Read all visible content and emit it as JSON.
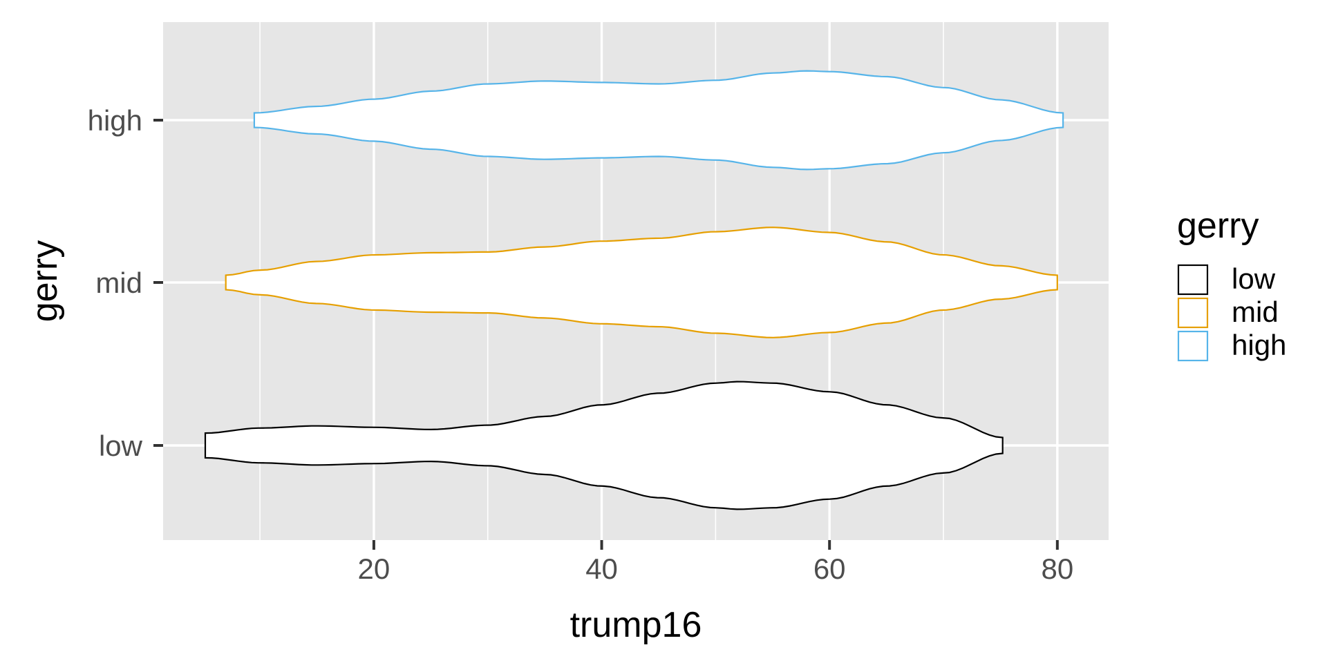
{
  "chart_data": {
    "type": "violin",
    "orientation": "horizontal",
    "xlabel": "trump16",
    "ylabel": "gerry",
    "xlim": [
      1.5,
      84.5
    ],
    "x_ticks": [
      20,
      40,
      60,
      80
    ],
    "x_tick_labels": [
      "20",
      "40",
      "60",
      "80"
    ],
    "categories": [
      "low",
      "mid",
      "high"
    ],
    "grid": true,
    "panel_background": "#E6E6E6",
    "fill_color": "#FFFFFF",
    "legend": {
      "title": "gerry",
      "position": "right",
      "entries": [
        {
          "label": "low",
          "color": "#000000"
        },
        {
          "label": "mid",
          "color": "#E69F00"
        },
        {
          "label": "high",
          "color": "#56B4E9"
        }
      ]
    },
    "series": [
      {
        "category": "low",
        "color": "#000000",
        "min": 5.2,
        "max": 75.2,
        "density_profile": [
          [
            5.2,
            0.17
          ],
          [
            10,
            0.24
          ],
          [
            15,
            0.27
          ],
          [
            20,
            0.25
          ],
          [
            25,
            0.22
          ],
          [
            30,
            0.28
          ],
          [
            35,
            0.4
          ],
          [
            40,
            0.56
          ],
          [
            45,
            0.72
          ],
          [
            50,
            0.86
          ],
          [
            52,
            0.88
          ],
          [
            55,
            0.86
          ],
          [
            60,
            0.74
          ],
          [
            65,
            0.56
          ],
          [
            70,
            0.38
          ],
          [
            75.2,
            0.11
          ]
        ]
      },
      {
        "category": "mid",
        "color": "#E69F00",
        "min": 7,
        "max": 80,
        "density_profile": [
          [
            7,
            0.1
          ],
          [
            10,
            0.17
          ],
          [
            15,
            0.29
          ],
          [
            20,
            0.38
          ],
          [
            25,
            0.41
          ],
          [
            30,
            0.42
          ],
          [
            35,
            0.49
          ],
          [
            40,
            0.57
          ],
          [
            45,
            0.61
          ],
          [
            50,
            0.7
          ],
          [
            55,
            0.76
          ],
          [
            60,
            0.69
          ],
          [
            65,
            0.56
          ],
          [
            70,
            0.38
          ],
          [
            75,
            0.23
          ],
          [
            80,
            0.1
          ]
        ]
      },
      {
        "category": "high",
        "color": "#56B4E9",
        "min": 9.5,
        "max": 80.5,
        "density_profile": [
          [
            9.5,
            0.1
          ],
          [
            15,
            0.19
          ],
          [
            20,
            0.29
          ],
          [
            25,
            0.4
          ],
          [
            30,
            0.5
          ],
          [
            35,
            0.54
          ],
          [
            40,
            0.52
          ],
          [
            45,
            0.5
          ],
          [
            50,
            0.55
          ],
          [
            55,
            0.65
          ],
          [
            58,
            0.68
          ],
          [
            60,
            0.67
          ],
          [
            65,
            0.6
          ],
          [
            70,
            0.45
          ],
          [
            75,
            0.28
          ],
          [
            80.5,
            0.1
          ]
        ]
      }
    ]
  }
}
